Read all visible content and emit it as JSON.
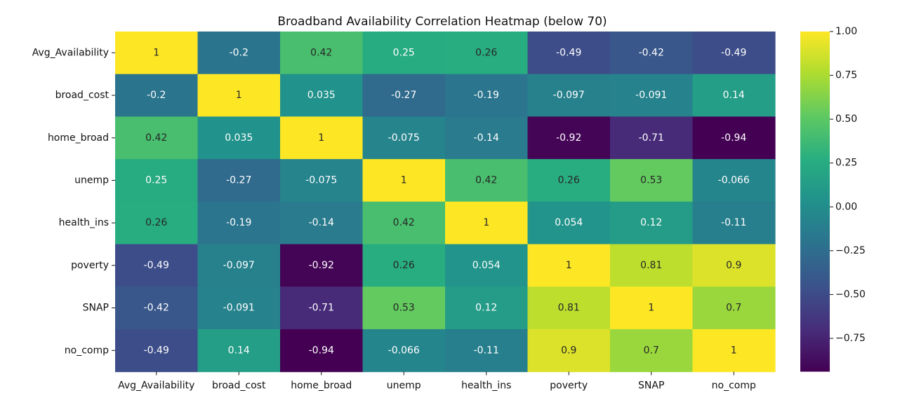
{
  "chart_data": {
    "type": "heatmap",
    "title": "Broadband Availability Correlation Heatmap (below 70)",
    "xlabel": "",
    "ylabel": "",
    "rows": [
      "Avg_Availability",
      "broad_cost",
      "home_broad",
      "unemp",
      "health_ins",
      "poverty",
      "SNAP",
      "no_comp"
    ],
    "columns": [
      "Avg_Availability",
      "broad_cost",
      "home_broad",
      "unemp",
      "health_ins",
      "poverty",
      "SNAP",
      "no_comp"
    ],
    "values": [
      [
        1,
        -0.2,
        0.42,
        0.25,
        0.26,
        -0.49,
        -0.42,
        -0.49
      ],
      [
        -0.2,
        1,
        0.035,
        -0.27,
        -0.19,
        -0.097,
        -0.091,
        0.14
      ],
      [
        0.42,
        0.035,
        1,
        -0.075,
        -0.14,
        -0.92,
        -0.71,
        -0.94
      ],
      [
        0.25,
        -0.27,
        -0.075,
        1,
        0.42,
        0.26,
        0.53,
        -0.066
      ],
      [
        0.26,
        -0.19,
        -0.14,
        0.42,
        1,
        0.054,
        0.12,
        -0.11
      ],
      [
        -0.49,
        -0.097,
        -0.92,
        0.26,
        0.054,
        1,
        0.81,
        0.9
      ],
      [
        -0.42,
        -0.091,
        -0.71,
        0.53,
        0.12,
        0.81,
        1,
        0.7
      ],
      [
        -0.49,
        0.14,
        -0.94,
        -0.066,
        -0.11,
        0.9,
        0.7,
        1
      ]
    ],
    "annotations": [
      [
        "1",
        "-0.2",
        "0.42",
        "0.25",
        "0.26",
        "-0.49",
        "-0.42",
        "-0.49"
      ],
      [
        "-0.2",
        "1",
        "0.035",
        "-0.27",
        "-0.19",
        "-0.097",
        "-0.091",
        "0.14"
      ],
      [
        "0.42",
        "0.035",
        "1",
        "-0.075",
        "-0.14",
        "-0.92",
        "-0.71",
        "-0.94"
      ],
      [
        "0.25",
        "-0.27",
        "-0.075",
        "1",
        "0.42",
        "0.26",
        "0.53",
        "-0.066"
      ],
      [
        "0.26",
        "-0.19",
        "-0.14",
        "0.42",
        "1",
        "0.054",
        "0.12",
        "-0.11"
      ],
      [
        "-0.49",
        "-0.097",
        "-0.92",
        "0.26",
        "0.054",
        "1",
        "0.81",
        "0.9"
      ],
      [
        "-0.42",
        "-0.091",
        "-0.71",
        "0.53",
        "0.12",
        "0.81",
        "1",
        "0.7"
      ],
      [
        "-0.49",
        "0.14",
        "-0.94",
        "-0.066",
        "-0.11",
        "0.9",
        "0.7",
        "1"
      ]
    ],
    "colormap": "viridis",
    "vmin": -0.94,
    "vmax": 1,
    "colorbar": {
      "ticks": [
        1.0,
        0.75,
        0.5,
        0.25,
        0.0,
        -0.25,
        -0.5,
        -0.75
      ],
      "tick_labels": [
        "1.00",
        "0.75",
        "0.50",
        "0.25",
        "0.00",
        "−0.25",
        "−0.50",
        "−0.75"
      ],
      "placement": "right"
    },
    "grid": false
  }
}
